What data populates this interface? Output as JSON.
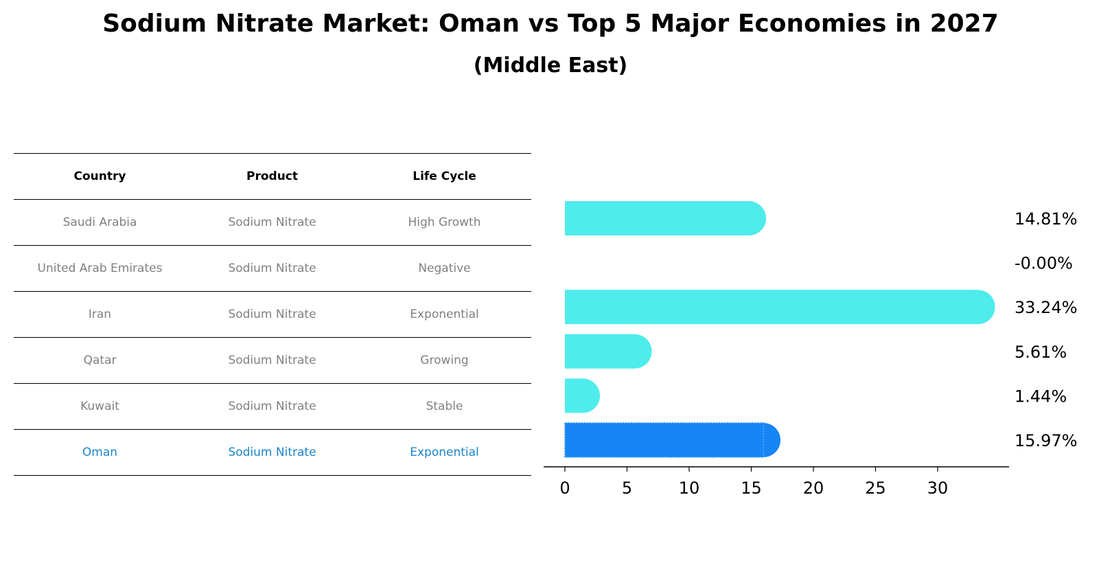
{
  "title": "Sodium Nitrate Market: Oman vs Top 5 Major Economies in 2027",
  "subtitle": "(Middle East)",
  "table": {
    "headers": [
      "Country",
      "Product",
      "Life Cycle"
    ],
    "rows": [
      [
        "Saudi Arabia",
        "Sodium Nitrate",
        "High Growth"
      ],
      [
        "United Arab Emirates",
        "Sodium Nitrate",
        "Negative"
      ],
      [
        "Iran",
        "Sodium Nitrate",
        "Exponential"
      ],
      [
        "Qatar",
        "Sodium Nitrate",
        "Growing"
      ],
      [
        "Kuwait",
        "Sodium Nitrate",
        "Stable"
      ],
      [
        "Oman",
        "Sodium Nitrate",
        "Exponential"
      ]
    ],
    "highlight_color": "#1a85c8"
  },
  "chart_data": {
    "type": "bar",
    "orientation": "horizontal",
    "categories": [
      "Saudi Arabia",
      "United Arab Emirates",
      "Iran",
      "Qatar",
      "Kuwait",
      "Oman"
    ],
    "values": [
      14.81,
      -0.0,
      33.24,
      5.61,
      1.44,
      15.97
    ],
    "labels": [
      "14.81%",
      "-0.00%",
      "33.24%",
      "5.61%",
      "1.44%",
      "15.97%"
    ],
    "xlim": [
      0,
      35
    ],
    "xticks": [
      0,
      5,
      10,
      15,
      20,
      25,
      30
    ],
    "bar_color": "#4eeceb",
    "highlight_color": "#1785f5",
    "highlight_category": "Oman",
    "grid": false
  }
}
